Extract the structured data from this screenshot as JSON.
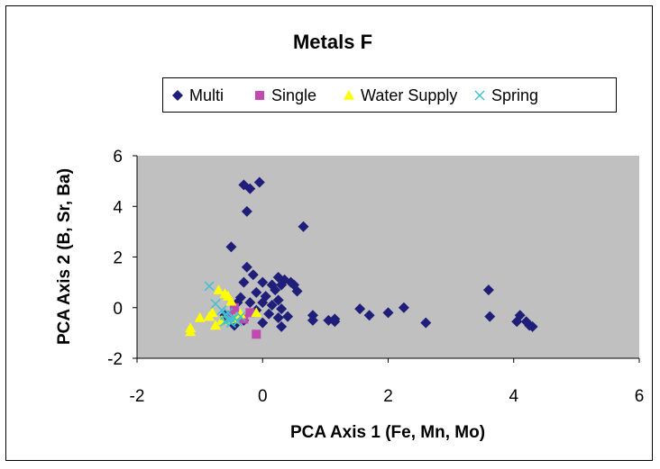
{
  "chart_data": {
    "type": "scatter",
    "title": "Metals F",
    "xlabel": "PCA Axis 1 (Fe, Mn, Mo)",
    "ylabel": "PCA Axis 2 (B, Sr, Ba)",
    "xlim": [
      -2,
      6
    ],
    "ylim": [
      -2,
      6
    ],
    "xticks": [
      "-2",
      "0",
      "2",
      "4",
      "6"
    ],
    "yticks": [
      "-2",
      "0",
      "2",
      "4",
      "6"
    ],
    "grid": false,
    "legend_position": "top",
    "plot_background": "#c0c0c0",
    "series": [
      {
        "name": "Multi",
        "marker": "diamond",
        "color": "#1f1f7a",
        "points": [
          [
            -0.05,
            4.95
          ],
          [
            -0.3,
            4.85
          ],
          [
            -0.2,
            4.7
          ],
          [
            -0.25,
            3.8
          ],
          [
            0.65,
            3.2
          ],
          [
            -0.5,
            2.4
          ],
          [
            -0.25,
            1.6
          ],
          [
            -0.15,
            1.3
          ],
          [
            0.25,
            1.2
          ],
          [
            0.35,
            1.1
          ],
          [
            0.45,
            1.0
          ],
          [
            -0.3,
            1.0
          ],
          [
            0.15,
            0.9
          ],
          [
            0.3,
            0.9
          ],
          [
            0.0,
            1.0
          ],
          [
            0.5,
            0.9
          ],
          [
            0.55,
            0.65
          ],
          [
            0.2,
            0.7
          ],
          [
            -0.1,
            0.6
          ],
          [
            -0.35,
            0.4
          ],
          [
            0.05,
            0.45
          ],
          [
            0.25,
            0.3
          ],
          [
            -0.4,
            0.2
          ],
          [
            0.0,
            0.2
          ],
          [
            0.15,
            0.1
          ],
          [
            -0.2,
            0.2
          ],
          [
            0.3,
            -0.05
          ],
          [
            -0.1,
            -0.1
          ],
          [
            0.1,
            -0.25
          ],
          [
            0.25,
            -0.4
          ],
          [
            0.4,
            -0.35
          ],
          [
            0.3,
            -0.75
          ],
          [
            0.0,
            -0.6
          ],
          [
            -0.45,
            -0.7
          ],
          [
            -0.6,
            -0.3
          ],
          [
            -0.3,
            -0.5
          ],
          [
            0.8,
            -0.3
          ],
          [
            0.8,
            -0.5
          ],
          [
            1.05,
            -0.5
          ],
          [
            1.15,
            -0.45
          ],
          [
            1.15,
            -0.55
          ],
          [
            1.55,
            -0.05
          ],
          [
            1.7,
            -0.3
          ],
          [
            2.0,
            -0.2
          ],
          [
            2.25,
            0.0
          ],
          [
            2.6,
            -0.6
          ],
          [
            3.6,
            0.7
          ],
          [
            3.62,
            -0.35
          ],
          [
            4.05,
            -0.55
          ],
          [
            4.1,
            -0.3
          ],
          [
            4.2,
            -0.55
          ],
          [
            4.25,
            -0.7
          ],
          [
            4.3,
            -0.75
          ]
        ]
      },
      {
        "name": "Single",
        "marker": "square",
        "color": "#c04ab0",
        "points": [
          [
            -0.1,
            -1.05
          ],
          [
            -0.45,
            0.0
          ],
          [
            -0.3,
            -0.45
          ],
          [
            -0.5,
            -0.3
          ],
          [
            -0.2,
            -0.2
          ]
        ]
      },
      {
        "name": "Water Supply",
        "marker": "triangle",
        "color": "#ffff00",
        "points": [
          [
            -1.15,
            -0.95
          ],
          [
            -1.15,
            -0.8
          ],
          [
            -1.0,
            -0.4
          ],
          [
            -0.85,
            -0.35
          ],
          [
            -0.75,
            -0.7
          ],
          [
            -0.65,
            -0.5
          ],
          [
            -0.7,
            0.7
          ],
          [
            -0.6,
            0.55
          ],
          [
            -0.55,
            0.45
          ],
          [
            -0.8,
            -0.2
          ],
          [
            -0.5,
            0.25
          ],
          [
            -0.45,
            -0.45
          ],
          [
            -0.35,
            -0.25
          ],
          [
            -0.1,
            -0.2
          ]
        ]
      },
      {
        "name": "Spring",
        "marker": "x",
        "color": "#40c0d0",
        "points": [
          [
            -0.85,
            0.85
          ],
          [
            -0.75,
            0.15
          ],
          [
            -0.65,
            -0.1
          ],
          [
            -0.6,
            -0.3
          ],
          [
            -0.55,
            -0.5
          ],
          [
            -0.5,
            -0.6
          ],
          [
            -0.45,
            -0.4
          ],
          [
            -0.4,
            -0.55
          ],
          [
            -0.55,
            -0.2
          ],
          [
            -0.35,
            -0.35
          ],
          [
            -0.5,
            -0.45
          ],
          [
            -0.6,
            -0.55
          ]
        ]
      }
    ]
  }
}
